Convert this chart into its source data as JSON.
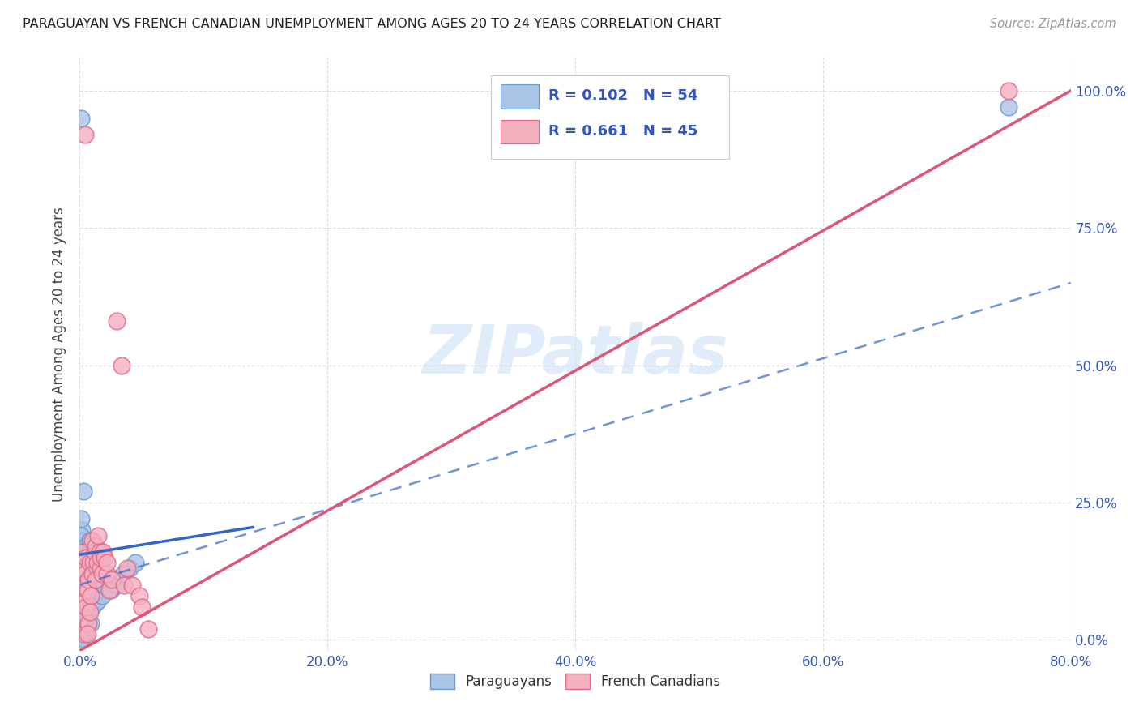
{
  "title": "PARAGUAYAN VS FRENCH CANADIAN UNEMPLOYMENT AMONG AGES 20 TO 24 YEARS CORRELATION CHART",
  "source": "Source: ZipAtlas.com",
  "ylabel": "Unemployment Among Ages 20 to 24 years",
  "xtick_vals": [
    0.0,
    0.2,
    0.4,
    0.6,
    0.8
  ],
  "xtick_labels": [
    "0.0%",
    "20.0%",
    "40.0%",
    "60.0%",
    "80.0%"
  ],
  "ytick_vals": [
    0.0,
    0.25,
    0.5,
    0.75,
    1.0
  ],
  "ytick_labels": [
    "0.0%",
    "25.0%",
    "50.0%",
    "75.0%",
    "100.0%"
  ],
  "xlim": [
    0.0,
    0.8
  ],
  "ylim": [
    -0.02,
    1.06
  ],
  "paraguayan_R": 0.102,
  "paraguayan_N": 54,
  "french_canadian_R": 0.661,
  "french_canadian_N": 45,
  "paraguayan_color": "#aac4e8",
  "paraguayan_edge": "#6699cc",
  "french_canadian_color": "#f5b0c0",
  "french_canadian_edge": "#e06888",
  "trend_paraguayan_color": "#3366cc",
  "trend_french_color": "#dd5577",
  "watermark_color": "#cce0f5",
  "background_color": "#ffffff",
  "axis_color": "#3355bb",
  "title_color": "#222222",
  "source_color": "#999999",
  "grid_color": "#dddddd",
  "ylabel_color": "#444444",
  "paraguayan_points_x": [
    0.002,
    0.001,
    0.003,
    0.001,
    0.002,
    0.003,
    0.001,
    0.002,
    0.004,
    0.003,
    0.002,
    0.001,
    0.003,
    0.002,
    0.004,
    0.001,
    0.005,
    0.004,
    0.003,
    0.006,
    0.005,
    0.007,
    0.006,
    0.005,
    0.008,
    0.007,
    0.009,
    0.008,
    0.01,
    0.009,
    0.011,
    0.01,
    0.012,
    0.013,
    0.014,
    0.012,
    0.015,
    0.014,
    0.016,
    0.015,
    0.018,
    0.02,
    0.022,
    0.018,
    0.02,
    0.025,
    0.028,
    0.03,
    0.035,
    0.04,
    0.045,
    0.001,
    0.75,
    0.002
  ],
  "paraguayan_points_y": [
    0.2,
    0.22,
    0.27,
    0.18,
    0.15,
    0.16,
    0.19,
    0.13,
    0.1,
    0.08,
    0.06,
    0.04,
    0.03,
    0.02,
    0.01,
    0.005,
    0.17,
    0.14,
    0.12,
    0.09,
    0.07,
    0.05,
    0.03,
    0.01,
    0.18,
    0.15,
    0.12,
    0.09,
    0.06,
    0.03,
    0.16,
    0.13,
    0.1,
    0.07,
    0.16,
    0.13,
    0.1,
    0.07,
    0.14,
    0.11,
    0.12,
    0.09,
    0.11,
    0.08,
    0.1,
    0.09,
    0.11,
    0.1,
    0.12,
    0.13,
    0.14,
    0.95,
    0.97,
    0.002
  ],
  "french_canadian_points_x": [
    0.002,
    0.003,
    0.001,
    0.004,
    0.002,
    0.003,
    0.005,
    0.004,
    0.006,
    0.005,
    0.007,
    0.006,
    0.008,
    0.007,
    0.009,
    0.008,
    0.01,
    0.011,
    0.012,
    0.01,
    0.013,
    0.014,
    0.013,
    0.015,
    0.014,
    0.016,
    0.017,
    0.018,
    0.017,
    0.019,
    0.02,
    0.022,
    0.024,
    0.022,
    0.026,
    0.03,
    0.034,
    0.038,
    0.036,
    0.042,
    0.048,
    0.05,
    0.055,
    0.75,
    0.004
  ],
  "french_canadian_points_y": [
    0.16,
    0.13,
    0.1,
    0.07,
    0.04,
    0.01,
    0.15,
    0.12,
    0.09,
    0.06,
    0.03,
    0.01,
    0.14,
    0.11,
    0.08,
    0.05,
    0.18,
    0.14,
    0.16,
    0.12,
    0.17,
    0.13,
    0.11,
    0.19,
    0.14,
    0.16,
    0.13,
    0.12,
    0.15,
    0.16,
    0.15,
    0.12,
    0.09,
    0.14,
    0.11,
    0.58,
    0.5,
    0.13,
    0.1,
    0.1,
    0.08,
    0.06,
    0.02,
    1.0,
    0.92
  ],
  "trend_para_x0": 0.0,
  "trend_para_y0": 0.155,
  "trend_para_x1": 0.14,
  "trend_para_y1": 0.205,
  "trend_french_x0": 0.0,
  "trend_french_y0": -0.02,
  "trend_french_x1": 0.8,
  "trend_french_y1": 1.0,
  "trend_dash_x0": 0.0,
  "trend_dash_y0": 0.1,
  "trend_dash_x1": 0.8,
  "trend_dash_y1": 0.65
}
